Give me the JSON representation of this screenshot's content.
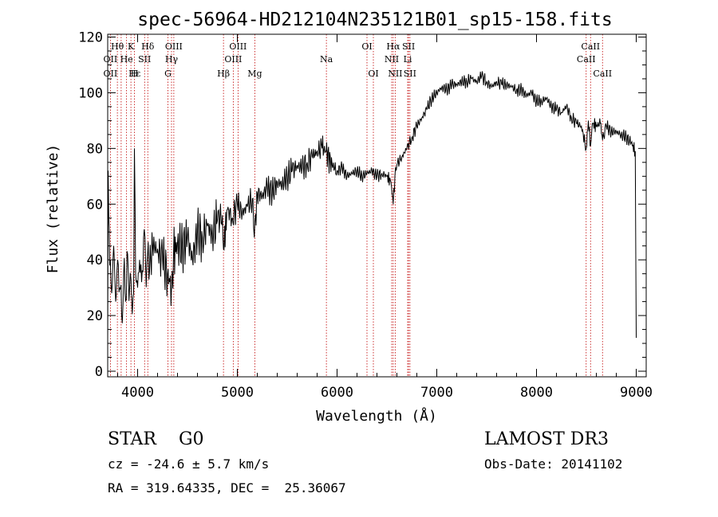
{
  "chart_data": {
    "type": "line",
    "title": "spec-56964-HD212104N235121B01_sp15-158.fits",
    "xlabel": "Wavelength (Å)",
    "ylabel": "Flux (relative)",
    "xlim": [
      3700,
      9100
    ],
    "ylim": [
      -2,
      121
    ],
    "xticks": [
      4000,
      5000,
      6000,
      7000,
      8000,
      9000
    ],
    "yticks": [
      0,
      20,
      40,
      60,
      80,
      100,
      120
    ],
    "series": [
      {
        "name": "flux",
        "x": [
          3700,
          3705,
          3720,
          3740,
          3760,
          3780,
          3800,
          3820,
          3840,
          3860,
          3880,
          3900,
          3920,
          3940,
          3960,
          3968,
          3980,
          4000,
          4020,
          4040,
          4060,
          4080,
          4100,
          4120,
          4150,
          4200,
          4250,
          4300,
          4340,
          4360,
          4400,
          4450,
          4500,
          4550,
          4600,
          4650,
          4700,
          4750,
          4800,
          4850,
          4861,
          4900,
          4950,
          5000,
          5050,
          5100,
          5150,
          5170,
          5200,
          5250,
          5300,
          5350,
          5400,
          5450,
          5500,
          5550,
          5600,
          5650,
          5700,
          5750,
          5800,
          5850,
          5890,
          5950,
          6000,
          6050,
          6100,
          6150,
          6200,
          6250,
          6300,
          6350,
          6400,
          6450,
          6500,
          6540,
          6563,
          6580,
          6600,
          6650,
          6700,
          6750,
          6800,
          6850,
          6900,
          6950,
          7000,
          7050,
          7100,
          7150,
          7200,
          7250,
          7300,
          7350,
          7400,
          7450,
          7500,
          7550,
          7600,
          7650,
          7700,
          7750,
          7800,
          7850,
          7900,
          7950,
          8000,
          8050,
          8100,
          8150,
          8200,
          8250,
          8300,
          8350,
          8400,
          8450,
          8498,
          8520,
          8542,
          8560,
          8600,
          8640,
          8662,
          8700,
          8750,
          8800,
          8850,
          8900,
          8950,
          8990,
          9000
        ],
        "y": [
          10,
          72,
          38,
          28,
          45,
          25,
          40,
          30,
          20,
          35,
          25,
          42,
          30,
          26,
          28,
          80,
          35,
          30,
          40,
          32,
          48,
          38,
          42,
          36,
          45,
          44,
          40,
          35,
          30,
          42,
          46,
          44,
          48,
          40,
          50,
          48,
          52,
          49,
          54,
          56,
          44,
          58,
          55,
          60,
          57,
          59,
          62,
          48,
          64,
          63,
          66,
          64,
          68,
          67,
          70,
          72,
          74,
          73,
          75,
          77,
          79,
          80,
          79,
          74,
          72,
          73,
          70,
          71,
          72,
          70,
          71,
          72,
          70,
          71,
          70,
          68,
          60,
          70,
          74,
          77,
          80,
          84,
          88,
          91,
          94,
          98,
          100,
          102,
          101,
          103,
          103,
          104,
          104,
          105,
          104,
          106,
          104,
          102,
          104,
          103,
          103,
          102,
          101,
          101,
          99,
          100,
          97,
          97,
          98,
          95,
          94,
          93,
          95,
          91,
          89,
          88,
          80,
          90,
          81,
          89,
          88,
          89,
          83,
          88,
          86,
          86,
          85,
          84,
          82,
          79,
          12
        ],
        "color": "#000000"
      }
    ],
    "line_labels": [
      {
        "label": "Hθ",
        "row": 1,
        "x": 3797
      },
      {
        "label": "K",
        "row": 1,
        "x": 3933
      },
      {
        "label": "Hδ",
        "row": 1,
        "x": 4102
      },
      {
        "label": "OIII",
        "row": 1,
        "x": 4363
      },
      {
        "label": "OIII",
        "row": 1,
        "x": 5007
      },
      {
        "label": "OI",
        "row": 1,
        "x": 6300
      },
      {
        "label": "Hα",
        "row": 1,
        "x": 6563
      },
      {
        "label": "SII",
        "row": 1,
        "x": 6717
      },
      {
        "label": "CaII",
        "row": 1,
        "x": 8542
      },
      {
        "label": "OII",
        "row": 2,
        "x": 3727
      },
      {
        "label": "He",
        "row": 2,
        "x": 3889
      },
      {
        "label": "SII",
        "row": 2,
        "x": 4070
      },
      {
        "label": "Hγ",
        "row": 2,
        "x": 4340
      },
      {
        "label": "OIII",
        "row": 2,
        "x": 4959
      },
      {
        "label": "Na",
        "row": 2,
        "x": 5893
      },
      {
        "label": "NII",
        "row": 2,
        "x": 6548
      },
      {
        "label": "Li",
        "row": 2,
        "x": 6708
      },
      {
        "label": "CaII",
        "row": 2,
        "x": 8498
      },
      {
        "label": "OII",
        "row": 3,
        "x": 3727
      },
      {
        "label": "Hε",
        "row": 3,
        "x": 3970
      },
      {
        "label": "H",
        "row": 3,
        "x": 3968
      },
      {
        "label": "G",
        "row": 3,
        "x": 4304
      },
      {
        "label": "Hβ",
        "row": 3,
        "x": 4861
      },
      {
        "label": "Mg",
        "row": 3,
        "x": 5175
      },
      {
        "label": "OI",
        "row": 3,
        "x": 6364
      },
      {
        "label": "NII",
        "row": 3,
        "x": 6583
      },
      {
        "label": "SII",
        "row": 3,
        "x": 6731
      },
      {
        "label": "CaII",
        "row": 3,
        "x": 8662
      }
    ],
    "line_positions": [
      3727,
      3797,
      3835,
      3889,
      3933,
      3968,
      4070,
      4102,
      4304,
      4340,
      4363,
      4861,
      4959,
      5007,
      5175,
      5893,
      6300,
      6364,
      6548,
      6563,
      6583,
      6708,
      6717,
      6731,
      8498,
      8542,
      8662
    ]
  },
  "info": {
    "class_label": "STAR",
    "subclass": "G0",
    "survey": "LAMOST DR3",
    "cz": "cz = -24.6 ± 5.7 km/s",
    "obs_date": "Obs-Date: 20141102",
    "coords": "RA = 319.64335, DEC =  25.36067"
  },
  "colors": {
    "line_marker": "#c00000",
    "spectrum": "#000000"
  }
}
